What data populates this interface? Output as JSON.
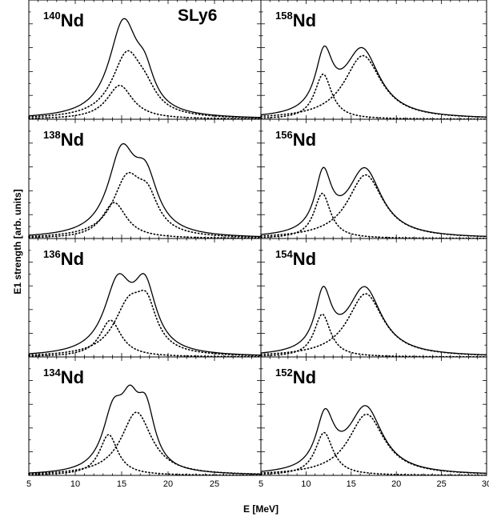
{
  "figure": {
    "ylabel": "E1 strength [arb. units]",
    "xlabel": "E [MeV]",
    "model_label": "SLy6"
  },
  "chart_data": [
    {
      "type": "line",
      "nucleus": {
        "mass": "140",
        "symbol": "Nd"
      },
      "xlim": [
        5,
        30
      ],
      "ylim": [
        0,
        1
      ],
      "series": [
        {
          "style": "solid",
          "components": [
            {
              "c": 15.2,
              "w": 1.9,
              "a": 0.92
            },
            {
              "c": 17.5,
              "w": 1.2,
              "a": 0.28
            }
          ]
        },
        {
          "style": "dotted",
          "components": [
            {
              "c": 15.6,
              "w": 2.0,
              "a": 0.62
            },
            {
              "c": 17.6,
              "w": 1.4,
              "a": 0.14
            }
          ]
        },
        {
          "style": "dotted",
          "components": [
            {
              "c": 14.8,
              "w": 1.7,
              "a": 0.33
            }
          ]
        }
      ]
    },
    {
      "type": "line",
      "nucleus": {
        "mass": "158",
        "symbol": "Nd"
      },
      "xlim": [
        5,
        30
      ],
      "ylim": [
        0,
        1
      ],
      "series": [
        {
          "style": "solid",
          "components": [
            {
              "c": 12.0,
              "w": 1.15,
              "a": 0.55
            },
            {
              "c": 16.2,
              "w": 2.4,
              "a": 0.66
            }
          ]
        },
        {
          "style": "dotted",
          "components": [
            {
              "c": 11.9,
              "w": 1.15,
              "a": 0.44
            }
          ]
        },
        {
          "style": "dotted",
          "components": [
            {
              "c": 16.3,
              "w": 2.5,
              "a": 0.62
            }
          ]
        }
      ]
    },
    {
      "type": "line",
      "nucleus": {
        "mass": "138",
        "symbol": "Nd"
      },
      "xlim": [
        5,
        30
      ],
      "ylim": [
        0,
        1
      ],
      "series": [
        {
          "style": "solid",
          "components": [
            {
              "c": 15.0,
              "w": 1.8,
              "a": 0.78
            },
            {
              "c": 17.6,
              "w": 1.6,
              "a": 0.5
            }
          ]
        },
        {
          "style": "dotted",
          "components": [
            {
              "c": 15.6,
              "w": 1.9,
              "a": 0.55
            },
            {
              "c": 17.8,
              "w": 1.4,
              "a": 0.3
            }
          ]
        },
        {
          "style": "dotted",
          "components": [
            {
              "c": 14.2,
              "w": 1.6,
              "a": 0.35
            }
          ]
        }
      ]
    },
    {
      "type": "line",
      "nucleus": {
        "mass": "156",
        "symbol": "Nd"
      },
      "xlim": [
        5,
        30
      ],
      "ylim": [
        0,
        1
      ],
      "series": [
        {
          "style": "solid",
          "components": [
            {
              "c": 11.9,
              "w": 1.1,
              "a": 0.56
            },
            {
              "c": 16.5,
              "w": 2.3,
              "a": 0.66
            }
          ]
        },
        {
          "style": "dotted",
          "components": [
            {
              "c": 11.8,
              "w": 1.1,
              "a": 0.44
            }
          ]
        },
        {
          "style": "dotted",
          "components": [
            {
              "c": 16.6,
              "w": 2.4,
              "a": 0.62
            }
          ]
        }
      ]
    },
    {
      "type": "line",
      "nucleus": {
        "mass": "136",
        "symbol": "Nd"
      },
      "xlim": [
        5,
        30
      ],
      "ylim": [
        0,
        1
      ],
      "series": [
        {
          "style": "solid",
          "components": [
            {
              "c": 14.6,
              "w": 1.8,
              "a": 0.68
            },
            {
              "c": 17.5,
              "w": 1.5,
              "a": 0.62
            }
          ]
        },
        {
          "style": "dotted",
          "components": [
            {
              "c": 15.8,
              "w": 2.0,
              "a": 0.48
            },
            {
              "c": 17.7,
              "w": 1.3,
              "a": 0.38
            }
          ]
        },
        {
          "style": "dotted",
          "components": [
            {
              "c": 13.8,
              "w": 1.4,
              "a": 0.36
            }
          ]
        }
      ]
    },
    {
      "type": "line",
      "nucleus": {
        "mass": "154",
        "symbol": "Nd"
      },
      "xlim": [
        5,
        30
      ],
      "ylim": [
        0,
        1
      ],
      "series": [
        {
          "style": "solid",
          "components": [
            {
              "c": 11.9,
              "w": 1.1,
              "a": 0.56
            },
            {
              "c": 16.5,
              "w": 2.3,
              "a": 0.66
            }
          ]
        },
        {
          "style": "dotted",
          "components": [
            {
              "c": 11.8,
              "w": 1.1,
              "a": 0.42
            }
          ]
        },
        {
          "style": "dotted",
          "components": [
            {
              "c": 16.6,
              "w": 2.4,
              "a": 0.62
            }
          ]
        }
      ]
    },
    {
      "type": "line",
      "nucleus": {
        "mass": "134",
        "symbol": "Nd"
      },
      "xlim": [
        5,
        30
      ],
      "ylim": [
        0,
        1
      ],
      "series": [
        {
          "style": "solid",
          "components": [
            {
              "c": 14.1,
              "w": 1.4,
              "a": 0.54
            },
            {
              "c": 15.9,
              "w": 1.2,
              "a": 0.5
            },
            {
              "c": 17.6,
              "w": 1.2,
              "a": 0.55
            }
          ]
        },
        {
          "style": "dotted",
          "components": [
            {
              "c": 16.6,
              "w": 2.0,
              "a": 0.62
            }
          ]
        },
        {
          "style": "dotted",
          "components": [
            {
              "c": 13.6,
              "w": 1.2,
              "a": 0.4
            }
          ]
        }
      ]
    },
    {
      "type": "line",
      "nucleus": {
        "mass": "152",
        "symbol": "Nd"
      },
      "xlim": [
        5,
        30
      ],
      "ylim": [
        0,
        1
      ],
      "series": [
        {
          "style": "solid",
          "components": [
            {
              "c": 12.1,
              "w": 1.2,
              "a": 0.52
            },
            {
              "c": 16.6,
              "w": 2.3,
              "a": 0.65
            }
          ]
        },
        {
          "style": "dotted",
          "components": [
            {
              "c": 12.0,
              "w": 1.2,
              "a": 0.42
            }
          ]
        },
        {
          "style": "dotted",
          "components": [
            {
              "c": 16.7,
              "w": 2.4,
              "a": 0.6
            }
          ]
        }
      ]
    }
  ],
  "x_tick_labels": [
    "5",
    "10",
    "15",
    "20",
    "25"
  ],
  "x_tick_labels_right": [
    "5",
    "10",
    "15",
    "20",
    "25",
    "30"
  ]
}
